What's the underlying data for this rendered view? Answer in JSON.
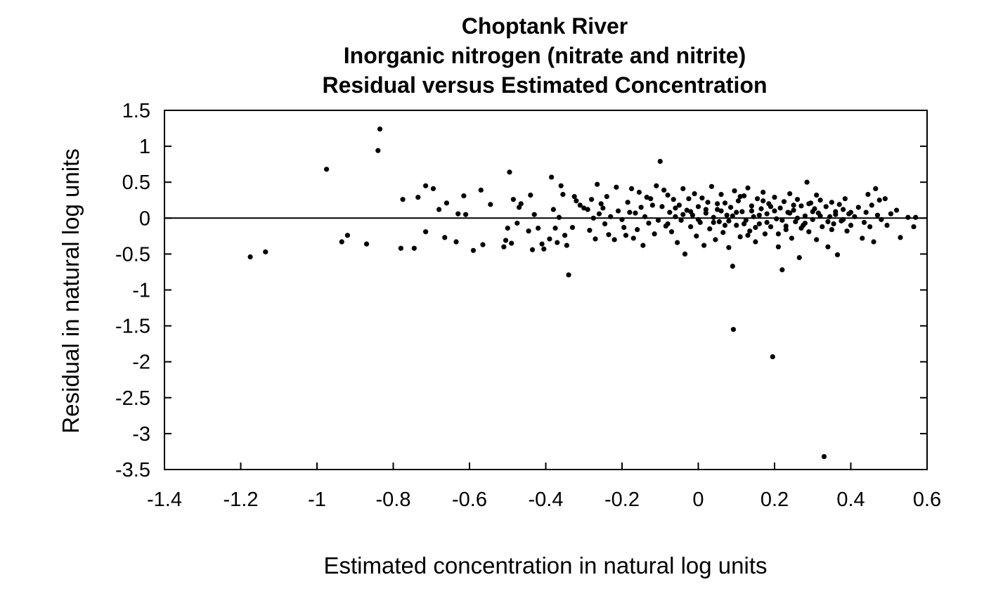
{
  "chart_data": {
    "type": "scatter",
    "title": [
      "Choptank River",
      "Inorganic nitrogen (nitrate and nitrite)",
      "Residual versus Estimated Concentration"
    ],
    "xlabel": "Estimated concentration in natural log units",
    "ylabel": "Residual in natural log units",
    "xlim": [
      -1.4,
      0.6
    ],
    "ylim": [
      -3.5,
      1.5
    ],
    "x_ticks": [
      -1.4,
      -1.2,
      -1.0,
      -0.8,
      -0.6,
      -0.4,
      -0.2,
      0,
      0.2,
      0.4,
      0.6
    ],
    "x_tick_labels": [
      "-1.4",
      "-1.2",
      "-1",
      "-0.8",
      "-0.6",
      "-0.4",
      "-0.2",
      "0",
      "0.2",
      "0.4",
      "0.6"
    ],
    "y_ticks": [
      1.5,
      1,
      0.5,
      0,
      -0.5,
      -1,
      -1.5,
      -2,
      -2.5,
      -3,
      -3.5
    ],
    "y_tick_labels": [
      "1.5",
      "1",
      "0.5",
      "0",
      "-0.5",
      "-1",
      "-1.5",
      "-2",
      "-2.5",
      "-3",
      "-3.5"
    ],
    "reference_line_y": 0,
    "grid": false,
    "point_color": "#000000",
    "points": [
      [
        -1.175,
        -0.54
      ],
      [
        -1.135,
        -0.47
      ],
      [
        -0.975,
        0.68
      ],
      [
        -0.84,
        0.94
      ],
      [
        -0.835,
        1.24
      ],
      [
        -0.935,
        -0.33
      ],
      [
        -0.92,
        -0.24
      ],
      [
        -0.87,
        -0.36
      ],
      [
        -0.775,
        0.26
      ],
      [
        -0.78,
        -0.42
      ],
      [
        -0.745,
        -0.42
      ],
      [
        -0.735,
        0.29
      ],
      [
        -0.715,
        0.45
      ],
      [
        -0.715,
        -0.19
      ],
      [
        -0.695,
        0.41
      ],
      [
        -0.68,
        0.12
      ],
      [
        -0.665,
        -0.27
      ],
      [
        -0.66,
        0.21
      ],
      [
        -0.635,
        -0.33
      ],
      [
        -0.63,
        0.06
      ],
      [
        -0.615,
        0.31
      ],
      [
        -0.61,
        0.05
      ],
      [
        -0.59,
        -0.45
      ],
      [
        -0.57,
        0.39
      ],
      [
        -0.565,
        -0.37
      ],
      [
        -0.545,
        0.19
      ],
      [
        -0.51,
        -0.4
      ],
      [
        -0.505,
        -0.31
      ],
      [
        -0.5,
        -0.14
      ],
      [
        -0.495,
        0.64
      ],
      [
        -0.49,
        -0.35
      ],
      [
        -0.485,
        0.26
      ],
      [
        -0.475,
        -0.07
      ],
      [
        -0.47,
        0.15
      ],
      [
        -0.465,
        0.2
      ],
      [
        -0.445,
        -0.18
      ],
      [
        -0.44,
        0.32
      ],
      [
        -0.435,
        -0.44
      ],
      [
        -0.43,
        0.05
      ],
      [
        -0.42,
        -0.14
      ],
      [
        -0.41,
        -0.36
      ],
      [
        -0.405,
        -0.43
      ],
      [
        -0.39,
        -0.29
      ],
      [
        -0.385,
        0.57
      ],
      [
        -0.38,
        0.12
      ],
      [
        -0.375,
        -0.14
      ],
      [
        -0.37,
        -0.34
      ],
      [
        -0.365,
        0.01
      ],
      [
        -0.36,
        0.45
      ],
      [
        -0.355,
        0.33
      ],
      [
        -0.35,
        -0.24
      ],
      [
        -0.345,
        -0.38
      ],
      [
        -0.34,
        -0.79
      ],
      [
        -0.33,
        -0.13
      ],
      [
        -0.325,
        0.3
      ],
      [
        -0.32,
        0.24
      ],
      [
        -0.31,
        0.18
      ],
      [
        -0.3,
        0.14
      ],
      [
        -0.29,
        0.12
      ],
      [
        -0.285,
        -0.17
      ],
      [
        -0.28,
        0.26
      ],
      [
        -0.275,
        0.0
      ],
      [
        -0.27,
        -0.29
      ],
      [
        -0.265,
        0.47
      ],
      [
        -0.26,
        0.06
      ],
      [
        -0.255,
        0.2
      ],
      [
        -0.25,
        0.14
      ],
      [
        -0.245,
        -0.08
      ],
      [
        -0.24,
        0.3
      ],
      [
        -0.235,
        -0.23
      ],
      [
        -0.23,
        0.02
      ],
      [
        -0.22,
        -0.3
      ],
      [
        -0.215,
        0.43
      ],
      [
        -0.21,
        0.1
      ],
      [
        -0.2,
        -0.02
      ],
      [
        -0.195,
        -0.13
      ],
      [
        -0.19,
        -0.24
      ],
      [
        -0.185,
        0.22
      ],
      [
        -0.18,
        0.08
      ],
      [
        -0.175,
        0.41
      ],
      [
        -0.17,
        -0.28
      ],
      [
        -0.165,
        0.07
      ],
      [
        -0.16,
        -0.16
      ],
      [
        -0.155,
        0.36
      ],
      [
        -0.15,
        0.15
      ],
      [
        -0.145,
        -0.38
      ],
      [
        -0.14,
        0.02
      ],
      [
        -0.135,
        0.29
      ],
      [
        -0.13,
        -0.07
      ],
      [
        -0.125,
        0.27
      ],
      [
        -0.12,
        0.18
      ],
      [
        -0.115,
        -0.22
      ],
      [
        -0.11,
        0.45
      ],
      [
        -0.105,
        -0.03
      ],
      [
        -0.1,
        0.79
      ],
      [
        -0.095,
        0.16
      ],
      [
        -0.09,
        0.39
      ],
      [
        -0.085,
        -0.11
      ],
      [
        -0.08,
        0.32
      ],
      [
        -0.075,
        0.08
      ],
      [
        -0.07,
        -0.19
      ],
      [
        -0.065,
        0.26
      ],
      [
        -0.06,
        0.02
      ],
      [
        -0.055,
        -0.34
      ],
      [
        -0.05,
        0.18
      ],
      [
        -0.045,
        -0.03
      ],
      [
        -0.04,
        0.41
      ],
      [
        -0.035,
        -0.5
      ],
      [
        -0.03,
        0.11
      ],
      [
        -0.025,
        0.27
      ],
      [
        -0.02,
        -0.12
      ],
      [
        -0.015,
        0.04
      ],
      [
        -0.01,
        0.34
      ],
      [
        -0.005,
        -0.25
      ],
      [
        0.0,
        0.16
      ],
      [
        0.005,
        -0.06
      ],
      [
        0.01,
        0.28
      ],
      [
        0.015,
        -0.38
      ],
      [
        0.02,
        0.07
      ],
      [
        0.025,
        0.22
      ],
      [
        0.03,
        -0.15
      ],
      [
        0.035,
        0.44
      ],
      [
        0.04,
        0.01
      ],
      [
        0.045,
        -0.3
      ],
      [
        0.05,
        0.12
      ],
      [
        0.055,
        -0.05
      ],
      [
        0.06,
        0.33
      ],
      [
        0.065,
        -0.2
      ],
      [
        0.07,
        0.21
      ],
      [
        0.075,
        0.04
      ],
      [
        0.08,
        -0.41
      ],
      [
        0.085,
        0.15
      ],
      [
        0.09,
        -0.67
      ],
      [
        0.092,
        -1.55
      ],
      [
        0.095,
        0.38
      ],
      [
        0.1,
        -0.1
      ],
      [
        0.105,
        0.24
      ],
      [
        0.11,
        -0.26
      ],
      [
        0.115,
        0.09
      ],
      [
        0.12,
        0.31
      ],
      [
        0.125,
        -0.03
      ],
      [
        0.13,
        0.42
      ],
      [
        0.135,
        -0.18
      ],
      [
        0.14,
        0.17
      ],
      [
        0.145,
        0.02
      ],
      [
        0.15,
        -0.33
      ],
      [
        0.155,
        0.27
      ],
      [
        0.16,
        -0.08
      ],
      [
        0.165,
        0.13
      ],
      [
        0.17,
        0.36
      ],
      [
        0.175,
        -0.22
      ],
      [
        0.18,
        0.06
      ],
      [
        0.185,
        0.2
      ],
      [
        0.19,
        -0.12
      ],
      [
        0.195,
        -1.93
      ],
      [
        0.2,
        0.29
      ],
      [
        0.205,
        -0.01
      ],
      [
        0.21,
        -0.4
      ],
      [
        0.215,
        0.14
      ],
      [
        0.22,
        -0.72
      ],
      [
        0.225,
        0.23
      ],
      [
        0.23,
        -0.16
      ],
      [
        0.235,
        0.08
      ],
      [
        0.24,
        0.34
      ],
      [
        0.245,
        -0.28
      ],
      [
        0.25,
        0.11
      ],
      [
        0.255,
        -0.05
      ],
      [
        0.26,
        0.26
      ],
      [
        0.265,
        -0.55
      ],
      [
        0.27,
        0.17
      ],
      [
        0.275,
        -0.1
      ],
      [
        0.28,
        0.03
      ],
      [
        0.285,
        0.5
      ],
      [
        0.29,
        -0.19
      ],
      [
        0.295,
        0.21
      ],
      [
        0.3,
        -0.02
      ],
      [
        0.305,
        0.13
      ],
      [
        0.31,
        -0.3
      ],
      [
        0.315,
        0.07
      ],
      [
        0.32,
        0.25
      ],
      [
        0.325,
        -0.12
      ],
      [
        0.33,
        -3.32
      ],
      [
        0.335,
        0.16
      ],
      [
        0.34,
        -0.4
      ],
      [
        0.345,
        0.02
      ],
      [
        0.35,
        0.22
      ],
      [
        0.355,
        -0.08
      ],
      [
        0.36,
        0.09
      ],
      [
        0.365,
        -0.51
      ],
      [
        0.37,
        0.19
      ],
      [
        0.375,
        -0.04
      ],
      [
        0.38,
        0.12
      ],
      [
        0.385,
        0.27
      ],
      [
        0.39,
        -0.18
      ],
      [
        0.395,
        0.06
      ],
      [
        0.4,
        -0.1
      ],
      [
        0.41,
        0.02
      ],
      [
        0.42,
        0.15
      ],
      [
        0.43,
        -0.28
      ],
      [
        0.435,
        -0.06
      ],
      [
        0.44,
        0.08
      ],
      [
        0.445,
        0.33
      ],
      [
        0.45,
        -0.12
      ],
      [
        0.455,
        0.18
      ],
      [
        0.46,
        -0.33
      ],
      [
        0.465,
        0.41
      ],
      [
        0.47,
        0.04
      ],
      [
        0.475,
        0.25
      ],
      [
        0.48,
        -0.02
      ],
      [
        0.49,
        0.27
      ],
      [
        0.495,
        -0.1
      ],
      [
        0.505,
        0.06
      ],
      [
        0.52,
        0.11
      ],
      [
        0.53,
        -0.27
      ],
      [
        0.55,
        0.01
      ],
      [
        0.565,
        -0.12
      ],
      [
        0.57,
        0.01
      ],
      [
        -0.04,
        0.05
      ],
      [
        -0.02,
        0.09
      ],
      [
        0.0,
        -0.02
      ],
      [
        0.02,
        0.12
      ],
      [
        0.04,
        -0.06
      ],
      [
        0.06,
        0.1
      ],
      [
        0.08,
        -0.04
      ],
      [
        0.1,
        0.08
      ],
      [
        0.12,
        -0.08
      ],
      [
        0.14,
        0.1
      ],
      [
        0.16,
        0.04
      ],
      [
        0.18,
        -0.06
      ],
      [
        0.2,
        0.1
      ],
      [
        0.22,
        -0.03
      ],
      [
        0.24,
        0.07
      ],
      [
        0.26,
        0.0
      ],
      [
        0.28,
        -0.07
      ],
      [
        0.3,
        0.09
      ],
      [
        0.32,
        0.03
      ],
      [
        0.34,
        -0.05
      ],
      [
        0.36,
        0.05
      ],
      [
        0.38,
        -0.02
      ],
      [
        0.4,
        0.08
      ],
      [
        0.05,
        0.2
      ],
      [
        0.15,
        -0.13
      ],
      [
        0.25,
        0.18
      ],
      [
        0.35,
        -0.16
      ],
      [
        0.07,
        -0.1
      ],
      [
        0.17,
        0.24
      ],
      [
        0.27,
        -0.14
      ],
      [
        -0.06,
        0.14
      ],
      [
        -0.08,
        -0.08
      ],
      [
        0.11,
        0.3
      ],
      [
        0.21,
        -0.22
      ],
      [
        0.31,
        0.32
      ],
      [
        0.19,
        0.16
      ],
      [
        0.09,
        0.03
      ],
      [
        0.29,
        0.2
      ],
      [
        0.13,
        -0.24
      ],
      [
        0.23,
        -0.11
      ]
    ]
  }
}
